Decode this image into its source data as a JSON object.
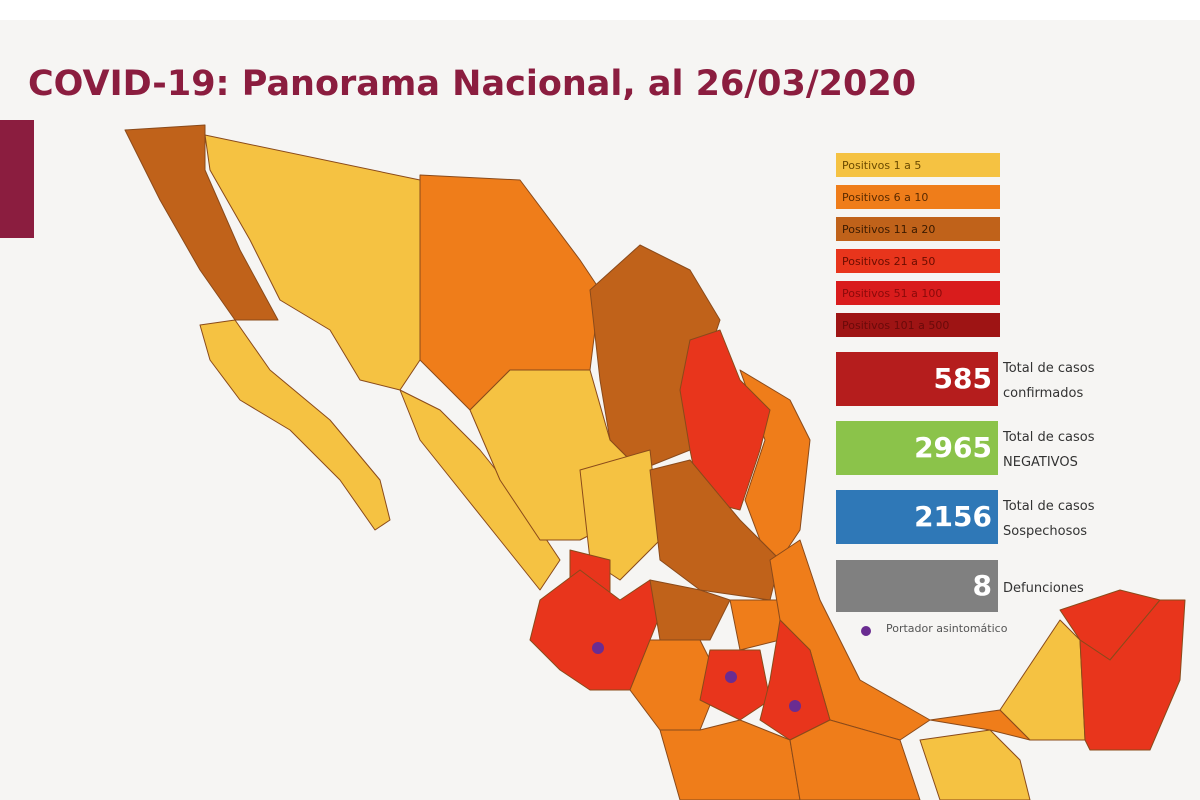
{
  "header": {
    "title": "COVID-19: Panorama Nacional, al 26/03/2020"
  },
  "legend": {
    "items": [
      "Positivos 1 a 5",
      "Positivos 6 a 10",
      "Positivos 11 a 20",
      "Positivos 21 a 50",
      "Positivos 51 a 100",
      "Positivos 101 a 500"
    ],
    "carrier": "Portador asintomático"
  },
  "stats": [
    {
      "value": "585",
      "label": [
        "Total de casos",
        "confirmados"
      ]
    },
    {
      "value": "2965",
      "label": [
        "Total de casos",
        "NEGATIVOS"
      ]
    },
    {
      "value": "2156",
      "label": [
        "Total de casos",
        "Sospechosos"
      ]
    },
    {
      "value": "8",
      "label": [
        "Defunciones"
      ]
    }
  ]
}
